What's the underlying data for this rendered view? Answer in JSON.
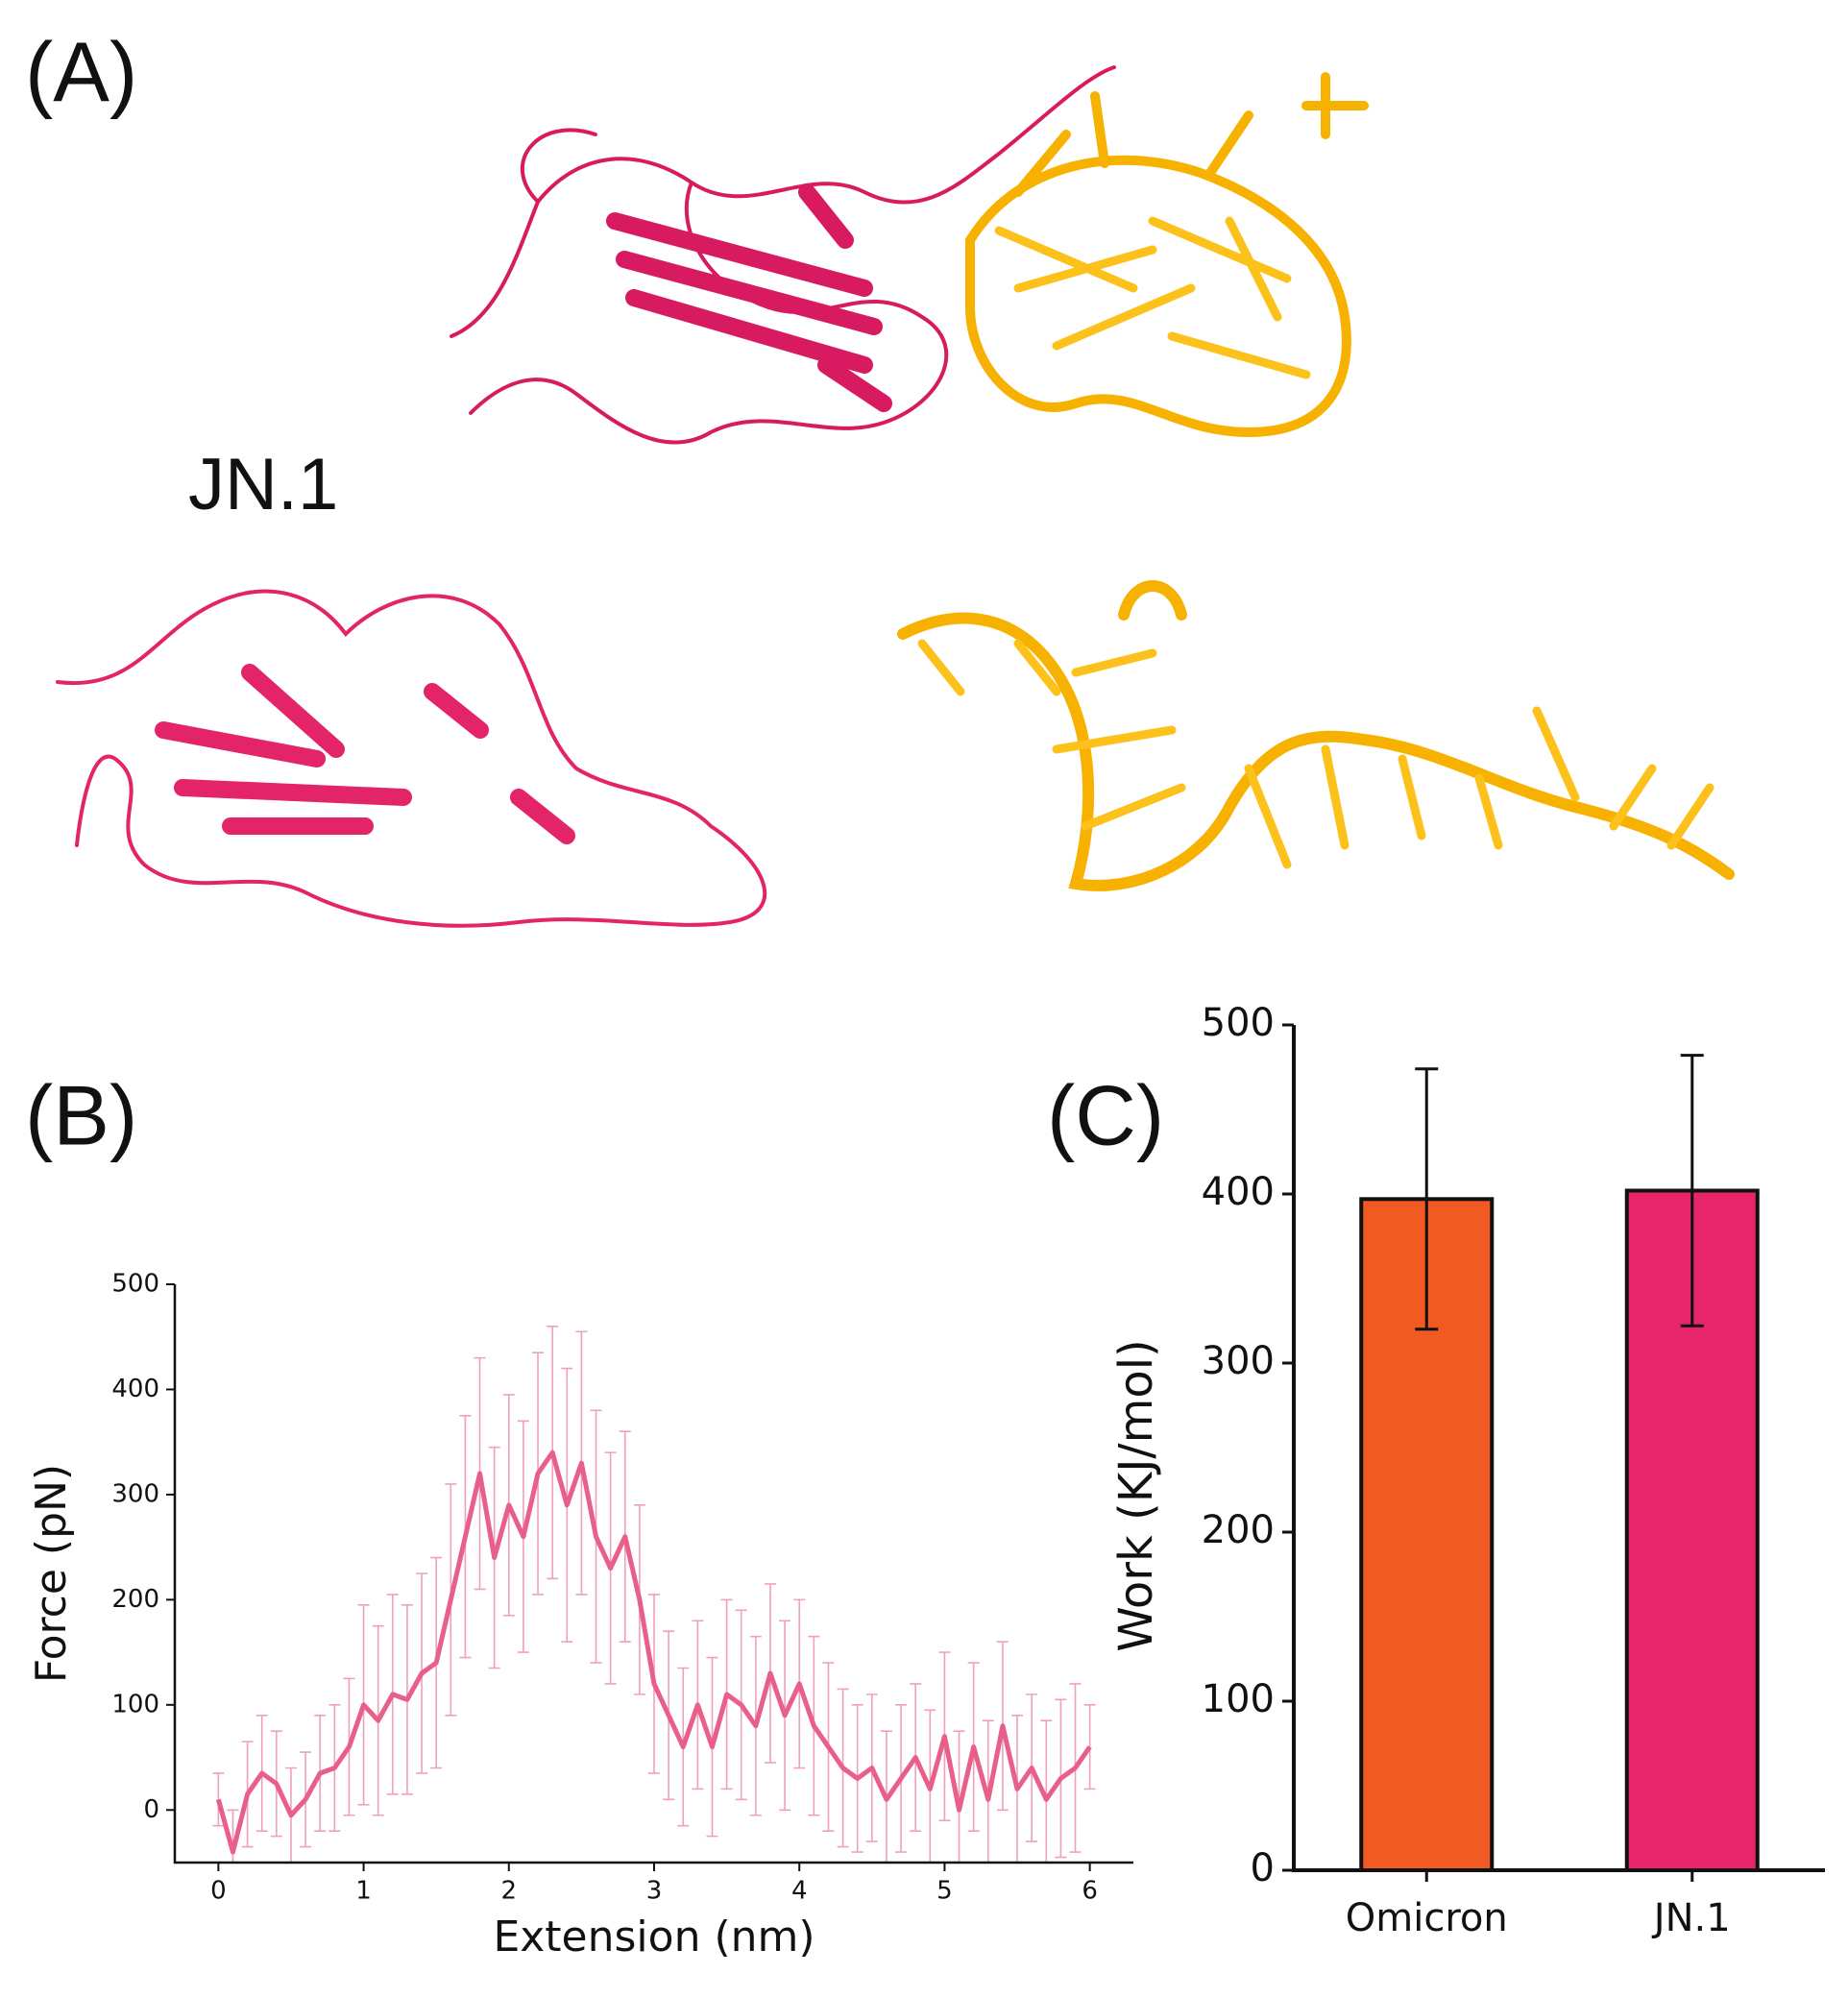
{
  "figure": {
    "panel_a": "(A)",
    "panel_b": "(B)",
    "panel_c": "(C)",
    "structure_label": "JN.1"
  },
  "chart_data": [
    {
      "type": "line",
      "x_label": "Extension (nm)",
      "y_label": "Force (pN)",
      "x": [
        0,
        0.1,
        0.2,
        0.3,
        0.4,
        0.5,
        0.6,
        0.7,
        0.8,
        0.9,
        1,
        1.1,
        1.2,
        1.3,
        1.4,
        1.5,
        1.6,
        1.7,
        1.8,
        1.9,
        2,
        2.1,
        2.2,
        2.3,
        2.4,
        2.5,
        2.6,
        2.7,
        2.8,
        2.9,
        3,
        3.1,
        3.2,
        3.3,
        3.4,
        3.5,
        3.6,
        3.7,
        3.8,
        3.9,
        4,
        4.1,
        4.2,
        4.3,
        4.4,
        4.5,
        4.6,
        4.7,
        4.8,
        4.9,
        5,
        5.1,
        5.2,
        5.3,
        5.4,
        5.5,
        5.6,
        5.7,
        5.8,
        5.9,
        6
      ],
      "values": [
        10,
        -40,
        15,
        35,
        25,
        -5,
        10,
        35,
        40,
        60,
        100,
        85,
        110,
        105,
        130,
        140,
        200,
        260,
        320,
        240,
        290,
        260,
        320,
        340,
        290,
        330,
        260,
        230,
        260,
        200,
        120,
        90,
        60,
        100,
        60,
        110,
        100,
        80,
        130,
        90,
        120,
        80,
        60,
        40,
        30,
        40,
        10,
        30,
        50,
        20,
        70,
        0,
        60,
        10,
        80,
        20,
        40,
        10,
        30,
        40,
        60
      ],
      "errors": [
        25,
        40,
        50,
        55,
        50,
        45,
        45,
        55,
        60,
        65,
        95,
        90,
        95,
        90,
        95,
        100,
        110,
        115,
        110,
        105,
        105,
        110,
        115,
        120,
        130,
        125,
        120,
        110,
        100,
        90,
        85,
        80,
        75,
        80,
        85,
        90,
        90,
        85,
        85,
        90,
        80,
        85,
        80,
        75,
        70,
        70,
        65,
        70,
        70,
        75,
        80,
        75,
        80,
        75,
        80,
        70,
        70,
        75,
        75,
        80,
        40
      ],
      "color": "#e8608a",
      "error_color": "#f0a0bd",
      "xlim": [
        -0.3,
        6.3
      ],
      "ylim": [
        -50,
        500
      ],
      "xticks": [
        0,
        1,
        2,
        3,
        4,
        5,
        6
      ],
      "yticks": [
        0,
        100,
        200,
        300,
        400,
        500
      ]
    },
    {
      "type": "bar",
      "y_label": "Work (KJ/mol)",
      "categories": [
        "Omicron",
        "JN.1"
      ],
      "values": [
        397,
        402
      ],
      "errors": [
        77,
        80
      ],
      "colors": [
        "#f15a22",
        "#e8246a"
      ],
      "ylim": [
        0,
        500
      ],
      "yticks": [
        0,
        100,
        200,
        300,
        400,
        500
      ]
    }
  ]
}
